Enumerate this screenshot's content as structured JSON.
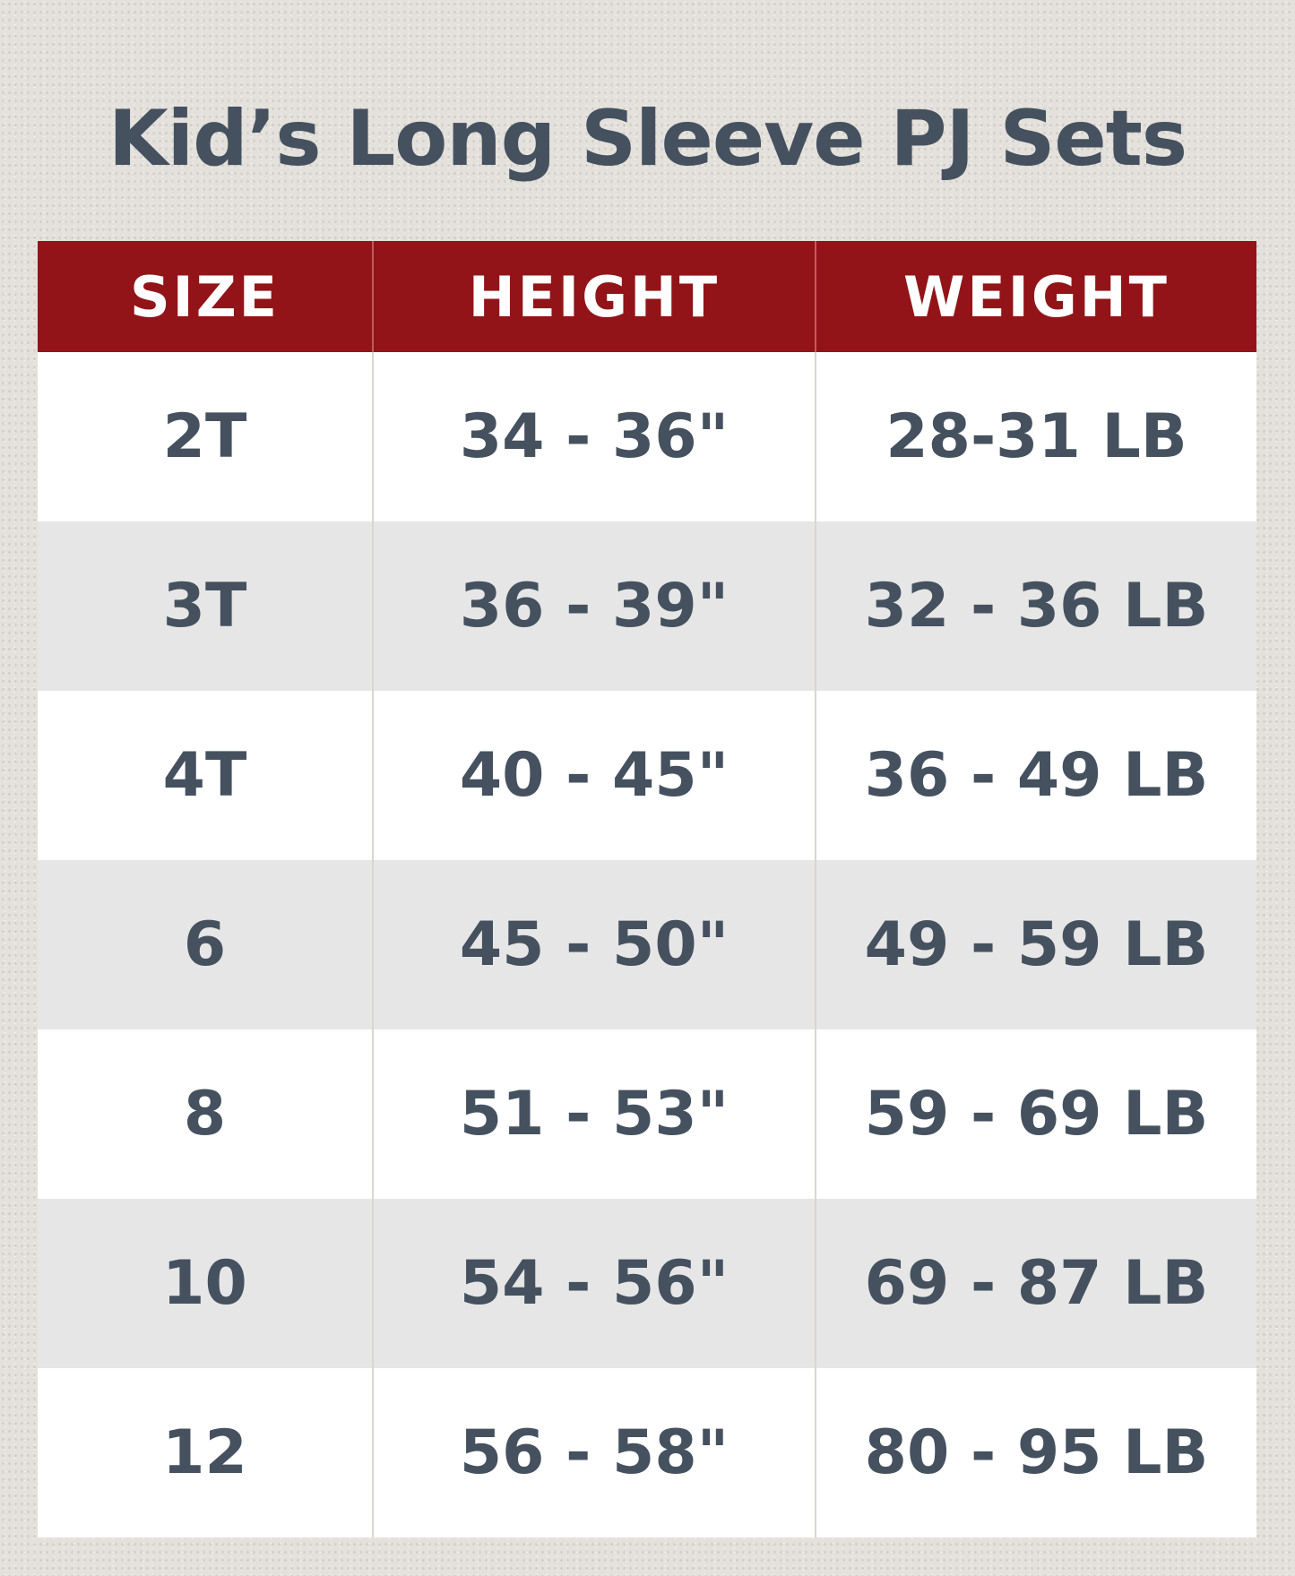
{
  "title": "Kid’s Long Sleeve PJ Sets",
  "colors": {
    "header_bg": "#921418",
    "text": "#45515f",
    "alt_row": "#e6e6e6"
  },
  "table": {
    "headers": [
      "SIZE",
      "HEIGHT",
      "WEIGHT"
    ],
    "rows": [
      [
        "2T",
        "34 - 36\"",
        "28-31 LB"
      ],
      [
        "3T",
        "36 - 39\"",
        "32 - 36 LB"
      ],
      [
        "4T",
        "40 - 45\"",
        "36 - 49 LB"
      ],
      [
        "6",
        "45 - 50\"",
        "49 - 59 LB"
      ],
      [
        "8",
        "51 - 53\"",
        "59 - 69 LB"
      ],
      [
        "10",
        "54 - 56\"",
        "69 - 87 LB"
      ],
      [
        "12",
        "56 - 58\"",
        "80 - 95 LB"
      ]
    ]
  }
}
